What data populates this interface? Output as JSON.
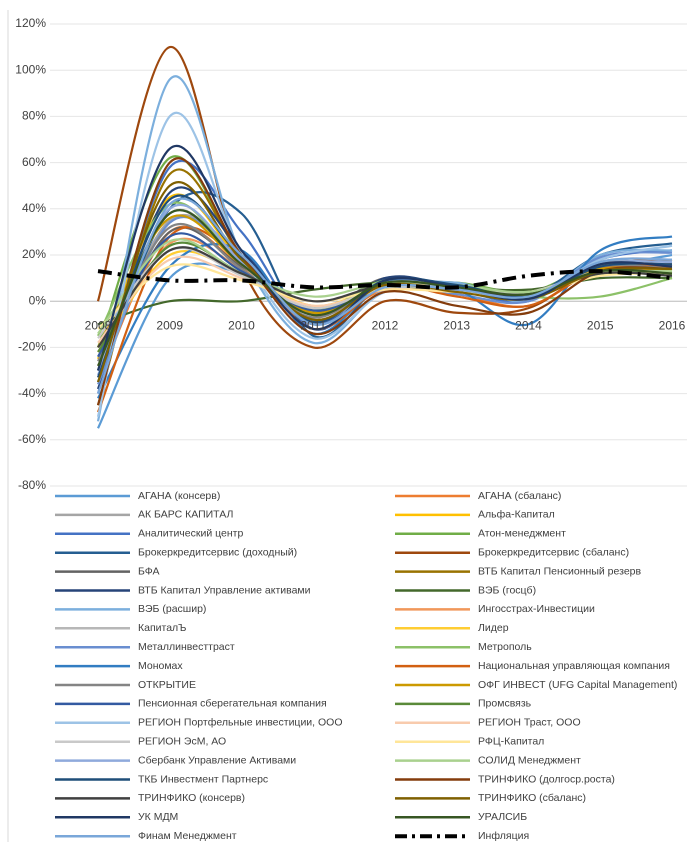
{
  "chart_data": {
    "type": "line",
    "categories": [
      "2008",
      "2009",
      "2010",
      "2011",
      "2012",
      "2013",
      "2014",
      "2015",
      "2016"
    ],
    "ylim": [
      -80,
      120
    ],
    "yticks": [
      {
        "value": -80,
        "label": "-80%"
      },
      {
        "value": -60,
        "label": "-60%"
      },
      {
        "value": -40,
        "label": "-40%"
      },
      {
        "value": -20,
        "label": "-20%"
      },
      {
        "value": 0,
        "label": "0%"
      },
      {
        "value": 20,
        "label": "20%"
      },
      {
        "value": 40,
        "label": "40%"
      },
      {
        "value": 60,
        "label": "60%"
      },
      {
        "value": 80,
        "label": "80%"
      },
      {
        "value": 100,
        "label": "100%"
      },
      {
        "value": 120,
        "label": "120%"
      }
    ],
    "grid": true,
    "series": [
      {
        "name": "АГАНА (консерв)",
        "color": "#5b9bd5",
        "values": [
          -55,
          10,
          12,
          -5,
          6,
          5,
          3,
          14,
          20
        ]
      },
      {
        "name": "АГАНА (сбаланс)",
        "color": "#ed7d31",
        "values": [
          -35,
          30,
          15,
          -10,
          5,
          3,
          -2,
          15,
          18
        ]
      },
      {
        "name": "АК БАРС КАПИТАЛ",
        "color": "#a5a5a5",
        "values": [
          -30,
          35,
          20,
          -8,
          6,
          4,
          2,
          17,
          15
        ]
      },
      {
        "name": "Альфа-Капитал",
        "color": "#ffc000",
        "values": [
          -25,
          45,
          18,
          -5,
          8,
          6,
          3,
          14,
          12
        ]
      },
      {
        "name": "Аналитический центр",
        "color": "#4472c4",
        "values": [
          -40,
          58,
          30,
          -12,
          9,
          5,
          0,
          18,
          22
        ]
      },
      {
        "name": "Атон-менеджмент",
        "color": "#70ad47",
        "values": [
          -20,
          62,
          20,
          -6,
          7,
          8,
          4,
          16,
          14
        ]
      },
      {
        "name": "Брокеркредитсервис (доходный)",
        "color": "#255e91",
        "values": [
          -35,
          40,
          38,
          -15,
          8,
          6,
          2,
          20,
          25
        ]
      },
      {
        "name": "Брокеркредитсервис (сбаланс)",
        "color": "#9e480e",
        "values": [
          0,
          110,
          15,
          -20,
          0,
          -5,
          -3,
          15,
          18
        ]
      },
      {
        "name": "БФА",
        "color": "#636363",
        "values": [
          -30,
          30,
          15,
          -5,
          10,
          5,
          2,
          12,
          14
        ]
      },
      {
        "name": "ВТБ Капитал Пенсионный резерв",
        "color": "#997300",
        "values": [
          -45,
          55,
          20,
          -8,
          8,
          5,
          3,
          14,
          16
        ]
      },
      {
        "name": "ВТБ Капитал Управление активами",
        "color": "#264478",
        "values": [
          -38,
          47,
          22,
          -10,
          10,
          6,
          1,
          16,
          15
        ]
      },
      {
        "name": "ВЭБ (госцб)",
        "color": "#43682b",
        "values": [
          -10,
          0,
          0,
          5,
          8,
          6,
          5,
          10,
          10
        ]
      },
      {
        "name": "ВЭБ (расшир)",
        "color": "#7cafdd",
        "values": [
          -52,
          96,
          20,
          -18,
          5,
          8,
          0,
          20,
          22
        ]
      },
      {
        "name": "Ингосстрах-Инвестиции",
        "color": "#f1975a",
        "values": [
          -28,
          25,
          14,
          -6,
          5,
          4,
          3,
          15,
          16
        ]
      },
      {
        "name": "КапиталЪ",
        "color": "#b7b7b7",
        "values": [
          -30,
          38,
          16,
          -8,
          7,
          5,
          1,
          17,
          18
        ]
      },
      {
        "name": "Лидер",
        "color": "#ffcd33",
        "values": [
          -22,
          20,
          12,
          -2,
          6,
          5,
          4,
          13,
          14
        ]
      },
      {
        "name": "Металлинвесттраст",
        "color": "#698ed0",
        "values": [
          -36,
          34,
          18,
          -10,
          6,
          3,
          0,
          19,
          21
        ]
      },
      {
        "name": "Метрополь",
        "color": "#8cc168",
        "values": [
          -15,
          42,
          16,
          -4,
          9,
          7,
          2,
          2,
          10
        ]
      },
      {
        "name": "Мономах",
        "color": "#327dc2",
        "values": [
          -42,
          15,
          22,
          -14,
          8,
          5,
          -10,
          22,
          28
        ]
      },
      {
        "name": "Национальная управляющая компания",
        "color": "#d26012",
        "values": [
          -48,
          28,
          18,
          -12,
          6,
          2,
          -2,
          14,
          15
        ]
      },
      {
        "name": "ОТКРЫТИЕ",
        "color": "#848484",
        "values": [
          -26,
          32,
          14,
          -7,
          8,
          6,
          3,
          15,
          14
        ]
      },
      {
        "name": "ОФГ ИНВЕСТ (UFG Capital Management)",
        "color": "#cc9a00",
        "values": [
          -20,
          36,
          16,
          -5,
          7,
          5,
          3,
          14,
          13
        ]
      },
      {
        "name": "Пенсионная сберегательная компания",
        "color": "#335aa1",
        "values": [
          -24,
          28,
          13,
          -4,
          6,
          5,
          2,
          13,
          12
        ]
      },
      {
        "name": "Промсвязь",
        "color": "#5a8a39",
        "values": [
          -22,
          24,
          12,
          -3,
          6,
          4,
          2,
          12,
          12
        ]
      },
      {
        "name": "РЕГИОН Портфельные инвестиции, ООО",
        "color": "#9dc3e6",
        "values": [
          -50,
          80,
          20,
          -16,
          4,
          6,
          1,
          18,
          24
        ]
      },
      {
        "name": "РЕГИОН Траст, ООО",
        "color": "#f8cbad",
        "values": [
          -18,
          18,
          10,
          -2,
          5,
          4,
          3,
          12,
          13
        ]
      },
      {
        "name": "РЕГИОН ЭсМ, АО",
        "color": "#c9c9c9",
        "values": [
          -16,
          22,
          11,
          -3,
          6,
          5,
          4,
          13,
          12
        ]
      },
      {
        "name": "РФЦ-Капитал",
        "color": "#ffe699",
        "values": [
          -12,
          15,
          9,
          0,
          5,
          4,
          3,
          11,
          12
        ]
      },
      {
        "name": "Сбербанк Управление Активами",
        "color": "#8faadc",
        "values": [
          -32,
          40,
          17,
          -9,
          8,
          6,
          2,
          16,
          17
        ]
      },
      {
        "name": "СОЛИД Менеджмент",
        "color": "#a9d18e",
        "values": [
          -14,
          26,
          12,
          2,
          8,
          7,
          4,
          12,
          13
        ]
      },
      {
        "name": "ТКБ Инвестмент Партнерс",
        "color": "#1f4e79",
        "values": [
          -33,
          44,
          19,
          -9,
          9,
          7,
          2,
          15,
          16
        ]
      },
      {
        "name": "ТРИНФИКО (долгоср.роста)",
        "color": "#843c0c",
        "values": [
          -45,
          60,
          20,
          -14,
          4,
          -2,
          -5,
          13,
          14
        ]
      },
      {
        "name": "ТРИНФИКО (консерв)",
        "color": "#404040",
        "values": [
          -20,
          22,
          12,
          0,
          7,
          5,
          3,
          12,
          11
        ]
      },
      {
        "name": "ТРИНФИКО (сбаланс)",
        "color": "#7f6000",
        "values": [
          -35,
          50,
          18,
          -8,
          7,
          4,
          1,
          13,
          14
        ]
      },
      {
        "name": "УК МДМ",
        "color": "#203864",
        "values": [
          -30,
          66,
          22,
          -12,
          9,
          6,
          1,
          16,
          15
        ]
      },
      {
        "name": "УРАЛСИБ",
        "color": "#375623",
        "values": [
          -28,
          38,
          16,
          -6,
          8,
          6,
          3,
          13,
          12
        ]
      },
      {
        "name": "Финам Менеджмент",
        "color": "#7aa7d9",
        "values": [
          -40,
          42,
          20,
          -10,
          6,
          5,
          2,
          17,
          18
        ]
      },
      {
        "name": "Инфляция",
        "color": "#000000",
        "dashed": true,
        "values": [
          13,
          9,
          9,
          6,
          7,
          6,
          11,
          13,
          10
        ]
      }
    ]
  }
}
